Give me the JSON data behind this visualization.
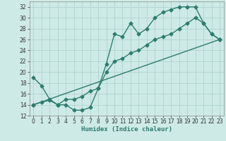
{
  "title": "",
  "xlabel": "Humidex (Indice chaleur)",
  "ylabel": "",
  "bg_color": "#ceeae6",
  "line_color": "#2d7d6e",
  "grid_color": "#aed4ce",
  "xlim": [
    -0.5,
    23.5
  ],
  "ylim": [
    12,
    33
  ],
  "xticks": [
    0,
    1,
    2,
    3,
    4,
    5,
    6,
    7,
    8,
    9,
    10,
    11,
    12,
    13,
    14,
    15,
    16,
    17,
    18,
    19,
    20,
    21,
    22,
    23
  ],
  "yticks": [
    12,
    14,
    16,
    18,
    20,
    22,
    24,
    26,
    28,
    30,
    32
  ],
  "line1_x": [
    0,
    1,
    2,
    3,
    4,
    5,
    6,
    7,
    8,
    9,
    10,
    11,
    12,
    13,
    14,
    15,
    16,
    17,
    18,
    19,
    20,
    21,
    22,
    23
  ],
  "line1_y": [
    19,
    17.5,
    15,
    14,
    14,
    13,
    13,
    13.5,
    17,
    21.5,
    27,
    26.5,
    29,
    27,
    28,
    30,
    31,
    31.5,
    32,
    32,
    32,
    29,
    27,
    26
  ],
  "line2_x": [
    0,
    1,
    2,
    3,
    4,
    5,
    6,
    7,
    8,
    9,
    10,
    11,
    12,
    13,
    14,
    15,
    16,
    17,
    18,
    19,
    20,
    21,
    22,
    23
  ],
  "line2_y": [
    14,
    14.5,
    14.8,
    14,
    15,
    15,
    15.5,
    16.5,
    17,
    20,
    22,
    22.5,
    23.5,
    24,
    25,
    26,
    26.5,
    27,
    28,
    29,
    30,
    29,
    27,
    26
  ],
  "line3_x": [
    0,
    23
  ],
  "line3_y": [
    14,
    26
  ],
  "marker": "D",
  "markersize": 2.5,
  "linewidth": 1.0,
  "tick_fontsize": 5.5,
  "xlabel_fontsize": 6.5
}
